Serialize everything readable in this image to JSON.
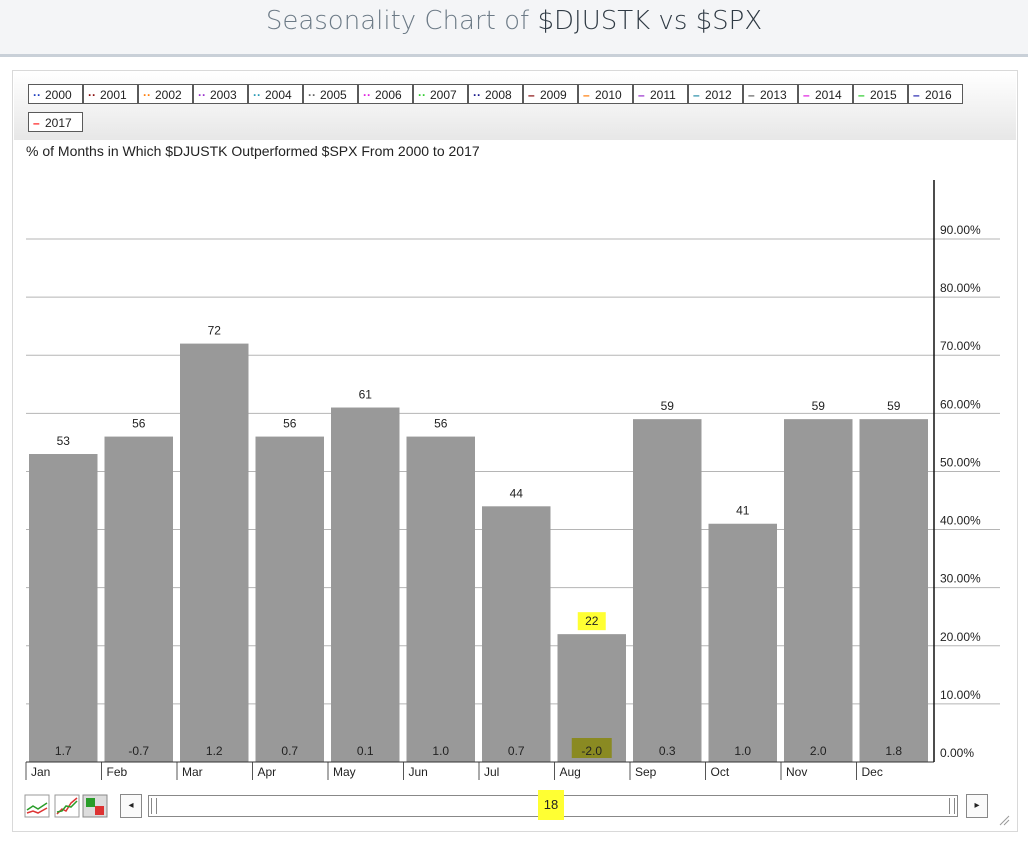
{
  "header": {
    "title_prefix": "Seasonality Chart of",
    "title_symbols": "$DJUSTK vs $SPX"
  },
  "legend": [
    {
      "label": "2000",
      "style": "dotted",
      "color": "#1f3fbf"
    },
    {
      "label": "2001",
      "style": "dotted",
      "color": "#8b1010"
    },
    {
      "label": "2002",
      "style": "dotted",
      "color": "#ff7f0e"
    },
    {
      "label": "2003",
      "style": "dotted",
      "color": "#9933cc"
    },
    {
      "label": "2004",
      "style": "dotted",
      "color": "#2a9bb5"
    },
    {
      "label": "2005",
      "style": "dotted",
      "color": "#666666"
    },
    {
      "label": "2006",
      "style": "dotted",
      "color": "#e020e0"
    },
    {
      "label": "2007",
      "style": "dotted",
      "color": "#33cc33"
    },
    {
      "label": "2008",
      "style": "dotted",
      "color": "#1a1a8c"
    },
    {
      "label": "2009",
      "style": "solid",
      "color": "#8b1010"
    },
    {
      "label": "2010",
      "style": "solid",
      "color": "#ff7f0e"
    },
    {
      "label": "2011",
      "style": "solid",
      "color": "#9933cc"
    },
    {
      "label": "2012",
      "style": "solid",
      "color": "#2a8fa8"
    },
    {
      "label": "2013",
      "style": "solid",
      "color": "#666666"
    },
    {
      "label": "2014",
      "style": "solid",
      "color": "#e020e0"
    },
    {
      "label": "2015",
      "style": "solid",
      "color": "#33cc33"
    },
    {
      "label": "2016",
      "style": "solid",
      "color": "#2a2ab0"
    },
    {
      "label": "2017",
      "style": "solid",
      "color": "#ff2020"
    }
  ],
  "chart_data": {
    "type": "bar",
    "title": "% of Months in Which $DJUSTK Outperformed $SPX From 2000 to 2017",
    "categories": [
      "Jan",
      "Feb",
      "Mar",
      "Apr",
      "May",
      "Jun",
      "Jul",
      "Aug",
      "Sep",
      "Oct",
      "Nov",
      "Dec"
    ],
    "values": [
      53,
      56,
      72,
      56,
      61,
      56,
      44,
      22,
      59,
      41,
      59,
      59
    ],
    "value_labels": [
      "53",
      "56",
      "72",
      "56",
      "61",
      "56",
      "44",
      "22",
      "59",
      "41",
      "59",
      "59"
    ],
    "avg_returns": [
      "1.7",
      "-0.7",
      "1.2",
      "0.7",
      "0.1",
      "1.0",
      "0.7",
      "-2.0",
      "0.3",
      "1.0",
      "2.0",
      "1.8"
    ],
    "highlighted_category": "Aug",
    "y_ticks": [
      "0.00%",
      "10.00%",
      "20.00%",
      "30.00%",
      "40.00%",
      "50.00%",
      "60.00%",
      "70.00%",
      "80.00%",
      "90.00%"
    ],
    "ylim": [
      0,
      100
    ],
    "y_axis_position": "right",
    "grid": true,
    "legend_position": "top",
    "bar_color": "#999999",
    "highlight_color": "#ffff33"
  },
  "navigator": {
    "count": "18",
    "left_arrow": "◂",
    "right_arrow": "▸"
  }
}
